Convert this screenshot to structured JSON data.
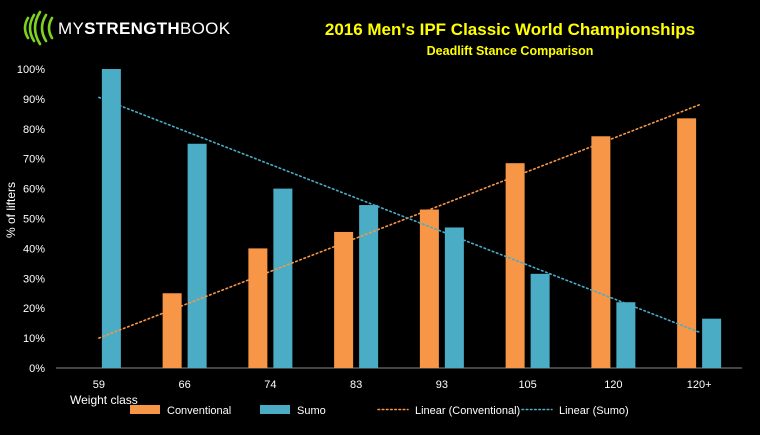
{
  "logo": {
    "part1": "MY",
    "part2": "STRENGTH",
    "part3": "BOOK",
    "accent": "#7ed321"
  },
  "colors": {
    "conventional": "#f79646",
    "sumo": "#4bacc6",
    "title": "#ffff00"
  },
  "chart_data": {
    "type": "bar",
    "title": "2016 Men's IPF Classic World Championships",
    "subtitle": "Deadlift Stance Comparison",
    "xlabel": "Weight class",
    "ylabel": "% of lifters",
    "categories": [
      "59",
      "66",
      "74",
      "83",
      "93",
      "105",
      "120",
      "120+"
    ],
    "series": [
      {
        "name": "Conventional",
        "values": [
          0,
          25,
          40,
          45.5,
          53,
          68.5,
          77.5,
          83.5
        ]
      },
      {
        "name": "Sumo",
        "values": [
          100,
          75,
          60,
          54.5,
          47,
          31.5,
          22,
          16.5
        ]
      }
    ],
    "trendlines": [
      {
        "name": "Linear (Conventional)",
        "start": 10,
        "end": 88
      },
      {
        "name": "Linear (Sumo)",
        "start": 90.5,
        "end": 12
      }
    ],
    "ylim": [
      0,
      100
    ],
    "yticks": [
      "0%",
      "10%",
      "20%",
      "30%",
      "40%",
      "50%",
      "60%",
      "70%",
      "80%",
      "90%",
      "100%"
    ],
    "legend": [
      "Conventional",
      "Sumo",
      "Linear (Conventional)",
      "Linear (Sumo)"
    ]
  }
}
